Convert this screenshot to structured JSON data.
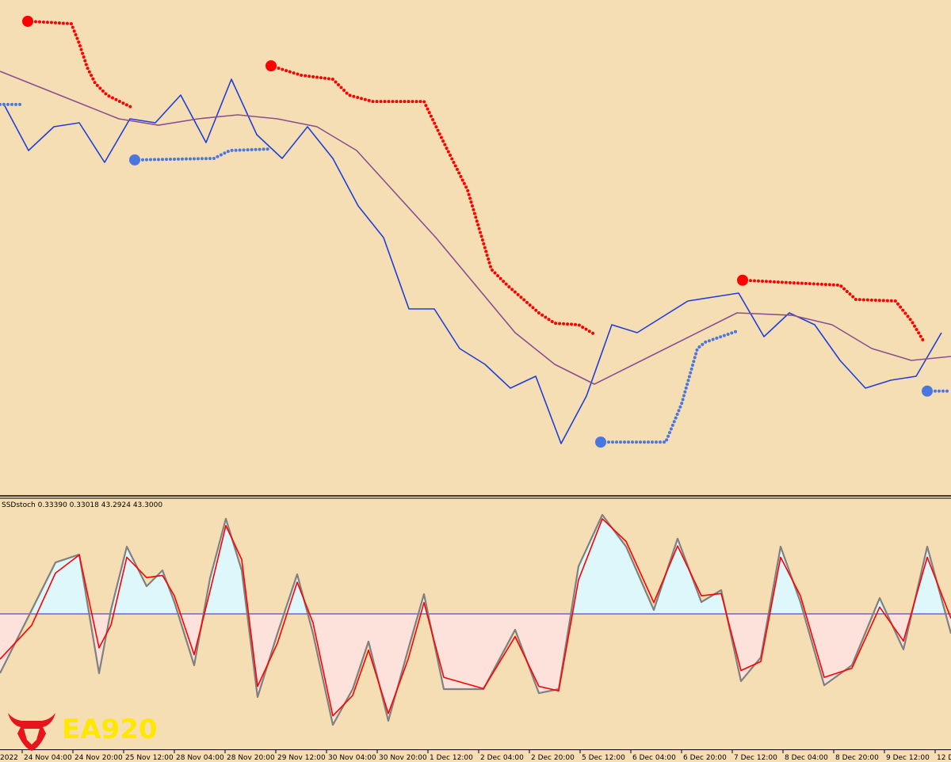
{
  "chart_data": [
    {
      "type": "line",
      "xlim": [
        -7,
        293
      ],
      "ylim": [
        0,
        100
      ],
      "series": [
        {
          "color": "#1f3fd9",
          "style": "line",
          "x": [
            -6,
            2,
            10,
            18,
            26,
            34,
            42,
            50,
            58,
            66,
            74,
            82,
            90,
            98,
            106,
            114,
            122,
            130,
            138,
            146,
            154,
            162,
            170,
            178,
            186,
            194,
            202,
            210,
            218,
            226,
            234,
            242,
            250,
            258,
            266,
            274,
            282,
            290
          ],
          "values": [
            79.2,
            69.6,
            74.4,
            75.2,
            67.2,
            76,
            75.2,
            80.8,
            71.2,
            84,
            72.8,
            68,
            74.4,
            68,
            58.4,
            52,
            37.6,
            37.6,
            29.6,
            26.4,
            21.6,
            24,
            10.4,
            20,
            34.4,
            32.8,
            36,
            39.2,
            40,
            40.8,
            32,
            36.8,
            34.4,
            27.2,
            21.6,
            23.2,
            24,
            32.8
          ]
        },
        {
          "color": "#8a4f8f",
          "style": "line",
          "x": [
            -7,
            18,
            30.5,
            43,
            55.5,
            68,
            80.5,
            93,
            105.5,
            118,
            130.5,
            143,
            155.5,
            168,
            180.5,
            193,
            205.5,
            218,
            225.5,
            243,
            255.5,
            268,
            280.5,
            293
          ],
          "values": [
            85.6,
            79.2,
            76,
            74.7,
            76,
            76.8,
            76,
            74.4,
            69.6,
            60.8,
            52,
            42.4,
            32.8,
            26.4,
            22.4,
            26.4,
            30.4,
            34.4,
            36.8,
            36.3,
            34.4,
            29.6,
            27.2,
            28
          ]
        },
        {
          "color": "#ff0000",
          "style": "dots",
          "x": [
            1.75,
            8,
            15.5,
            18,
            20.5,
            23,
            26.75,
            34.25,
            null,
            78.5,
            88,
            98,
            103,
            110.5,
            126.75,
            133,
            140.5,
            144.25,
            148,
            153,
            163,
            168,
            175.5,
            180.5,
            null,
            227.25,
            258,
            263,
            275.5,
            280.5,
            284.25
          ],
          "values": [
            95.7,
            95.5,
            95.2,
            91.2,
            86.4,
            83.2,
            80.8,
            78.4,
            null,
            86.7,
            84.8,
            84,
            80.8,
            79.5,
            79.5,
            71.2,
            61.6,
            53.6,
            45.6,
            42.4,
            36.8,
            34.7,
            34.4,
            32.5,
            null,
            43.4,
            42.4,
            39.5,
            39.2,
            35.2,
            31.2
          ]
        },
        {
          "color": "#4a76e0",
          "style": "dots",
          "x": [
            -7,
            0.5,
            null,
            35.5,
            60.5,
            65.5,
            78,
            null,
            182.5,
            203,
            208,
            213,
            215.5,
            225.5,
            null,
            285.5,
            293
          ],
          "values": [
            78.9,
            78.9,
            null,
            67.7,
            68,
            69.6,
            69.9,
            null,
            10.7,
            10.7,
            18.4,
            29.6,
            30.9,
            33.1,
            null,
            21,
            21
          ]
        }
      ]
    },
    {
      "type": "line",
      "title": "SSDstoch 0.33390 0.33018 43.2924 43.3000",
      "xlim": [
        -7,
        293
      ],
      "ylim": [
        0,
        100
      ],
      "level": 50,
      "level_color": "#2a2ab8",
      "fill_above": "#ddf7fa",
      "fill_below": "#fde2dc",
      "xticks": [
        {
          "value": -16,
          "label": "2022"
        },
        {
          "value": 0,
          "label": "24 Nov 04:00"
        },
        {
          "value": 16,
          "label": "24 Nov 20:00"
        },
        {
          "value": 32,
          "label": "25 Nov 12:00"
        },
        {
          "value": 48,
          "label": "28 Nov 04:00"
        },
        {
          "value": 64,
          "label": "28 Nov 20:00"
        },
        {
          "value": 80,
          "label": "29 Nov 12:00"
        },
        {
          "value": 96,
          "label": "30 Nov 04:00"
        },
        {
          "value": 112,
          "label": "30 Nov 20:00"
        },
        {
          "value": 128,
          "label": "1 Dec 12:00"
        },
        {
          "value": 144,
          "label": "2 Dec 04:00"
        },
        {
          "value": 160,
          "label": "2 Dec 20:00"
        },
        {
          "value": 176,
          "label": "5 Dec 12:00"
        },
        {
          "value": 192,
          "label": "6 Dec 04:00"
        },
        {
          "value": 208,
          "label": "6 Dec 20:00"
        },
        {
          "value": 224,
          "label": "7 Dec 12:00"
        },
        {
          "value": 240,
          "label": "8 Dec 04:00"
        },
        {
          "value": 256,
          "label": "8 Dec 20:00"
        },
        {
          "value": 272,
          "label": "9 Dec 12:00"
        },
        {
          "value": 288,
          "label": "12 D"
        }
      ],
      "series": [
        {
          "color": "#808080",
          "style": "line",
          "x": [
            -7,
            3,
            10.5,
            18,
            24.25,
            28,
            33,
            39.25,
            44.25,
            48,
            54.25,
            59.25,
            64.25,
            69.25,
            74.25,
            80.5,
            86.75,
            91.75,
            98,
            104.25,
            109.25,
            115.5,
            121.75,
            126.75,
            133,
            145.5,
            155.5,
            163,
            169.25,
            175.5,
            183,
            190.5,
            199.25,
            206.75,
            214.25,
            220.5,
            226.75,
            233,
            239.25,
            245.5,
            253,
            261.75,
            270.5,
            278,
            285.5,
            293
          ],
          "values": [
            23.8,
            51.7,
            72.7,
            76.2,
            23.8,
            51.7,
            79.7,
            62.2,
            69.2,
            55.2,
            27.3,
            65.7,
            92,
            69.2,
            13.3,
            41.3,
            67.5,
            41.3,
            1,
            16.8,
            37.8,
            2.8,
            34.3,
            58.7,
            16.8,
            16.8,
            43,
            15,
            16.8,
            71,
            93.7,
            79.7,
            51.7,
            83.2,
            55.2,
            60.5,
            20.3,
            30.8,
            79.7,
            55.2,
            18.5,
            27.3,
            57,
            34.3,
            79.7,
            41.3
          ]
        },
        {
          "color": "#ff0000",
          "style": "line",
          "x": [
            -7,
            3,
            10.5,
            18,
            24.25,
            28,
            33,
            39.25,
            44.25,
            48,
            54.25,
            59.25,
            64.25,
            69.25,
            74.25,
            80.5,
            86.75,
            91.75,
            98,
            104.25,
            109.25,
            115.5,
            121.75,
            126.75,
            133,
            145.5,
            155.5,
            163,
            169.25,
            175.5,
            183,
            190.5,
            199.25,
            206.75,
            214.25,
            220.5,
            226.75,
            233,
            239.25,
            245.5,
            253,
            261.75,
            270.5,
            278,
            285.5,
            293
          ],
          "values": [
            30,
            45,
            68,
            76,
            35,
            45,
            75,
            66,
            67,
            58,
            32,
            60,
            89,
            74,
            18,
            37,
            64,
            46,
            5,
            14,
            34,
            6,
            30,
            55,
            22,
            17,
            40,
            18,
            16,
            65,
            92,
            82,
            55,
            80,
            58,
            59,
            25,
            29,
            75,
            58,
            22,
            26,
            53,
            38,
            75,
            48
          ]
        }
      ]
    }
  ],
  "logo": {
    "text": "EA920"
  }
}
